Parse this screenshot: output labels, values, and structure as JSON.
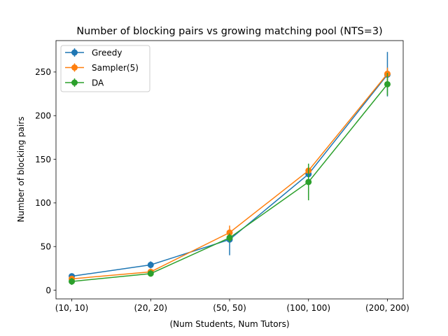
{
  "chart_data": {
    "type": "line",
    "title": "Number of blocking pairs vs growing matching pool (NTS=3)",
    "xlabel": "(Num Students, Num Tutors)",
    "ylabel": "Number of blocking pairs",
    "categories": [
      "(10, 10)",
      "(20, 20)",
      "(50, 50)",
      "(100, 100)",
      "(200, 200)"
    ],
    "ylim": [
      -10,
      286
    ],
    "yticks": [
      0,
      50,
      100,
      150,
      200,
      250
    ],
    "grid": false,
    "legend_position": "upper-left",
    "series": [
      {
        "name": "Greedy",
        "color": "#1f77b4",
        "values": [
          16,
          29,
          58,
          133,
          247
        ],
        "err_low": [
          13,
          25,
          40,
          106,
          222
        ],
        "err_high": [
          19,
          33,
          66,
          140,
          273
        ]
      },
      {
        "name": "Sampler(5)",
        "color": "#ff7f0e",
        "values": [
          13,
          21,
          66,
          137,
          248
        ],
        "err_low": [
          10,
          18,
          58,
          131,
          240
        ],
        "err_high": [
          16,
          24,
          74,
          143,
          255
        ]
      },
      {
        "name": "DA",
        "color": "#2ca02c",
        "values": [
          10,
          19,
          60,
          124,
          236
        ],
        "err_low": [
          6,
          16,
          55,
          103,
          223
        ],
        "err_high": [
          14,
          23,
          65,
          145,
          249
        ]
      }
    ]
  }
}
